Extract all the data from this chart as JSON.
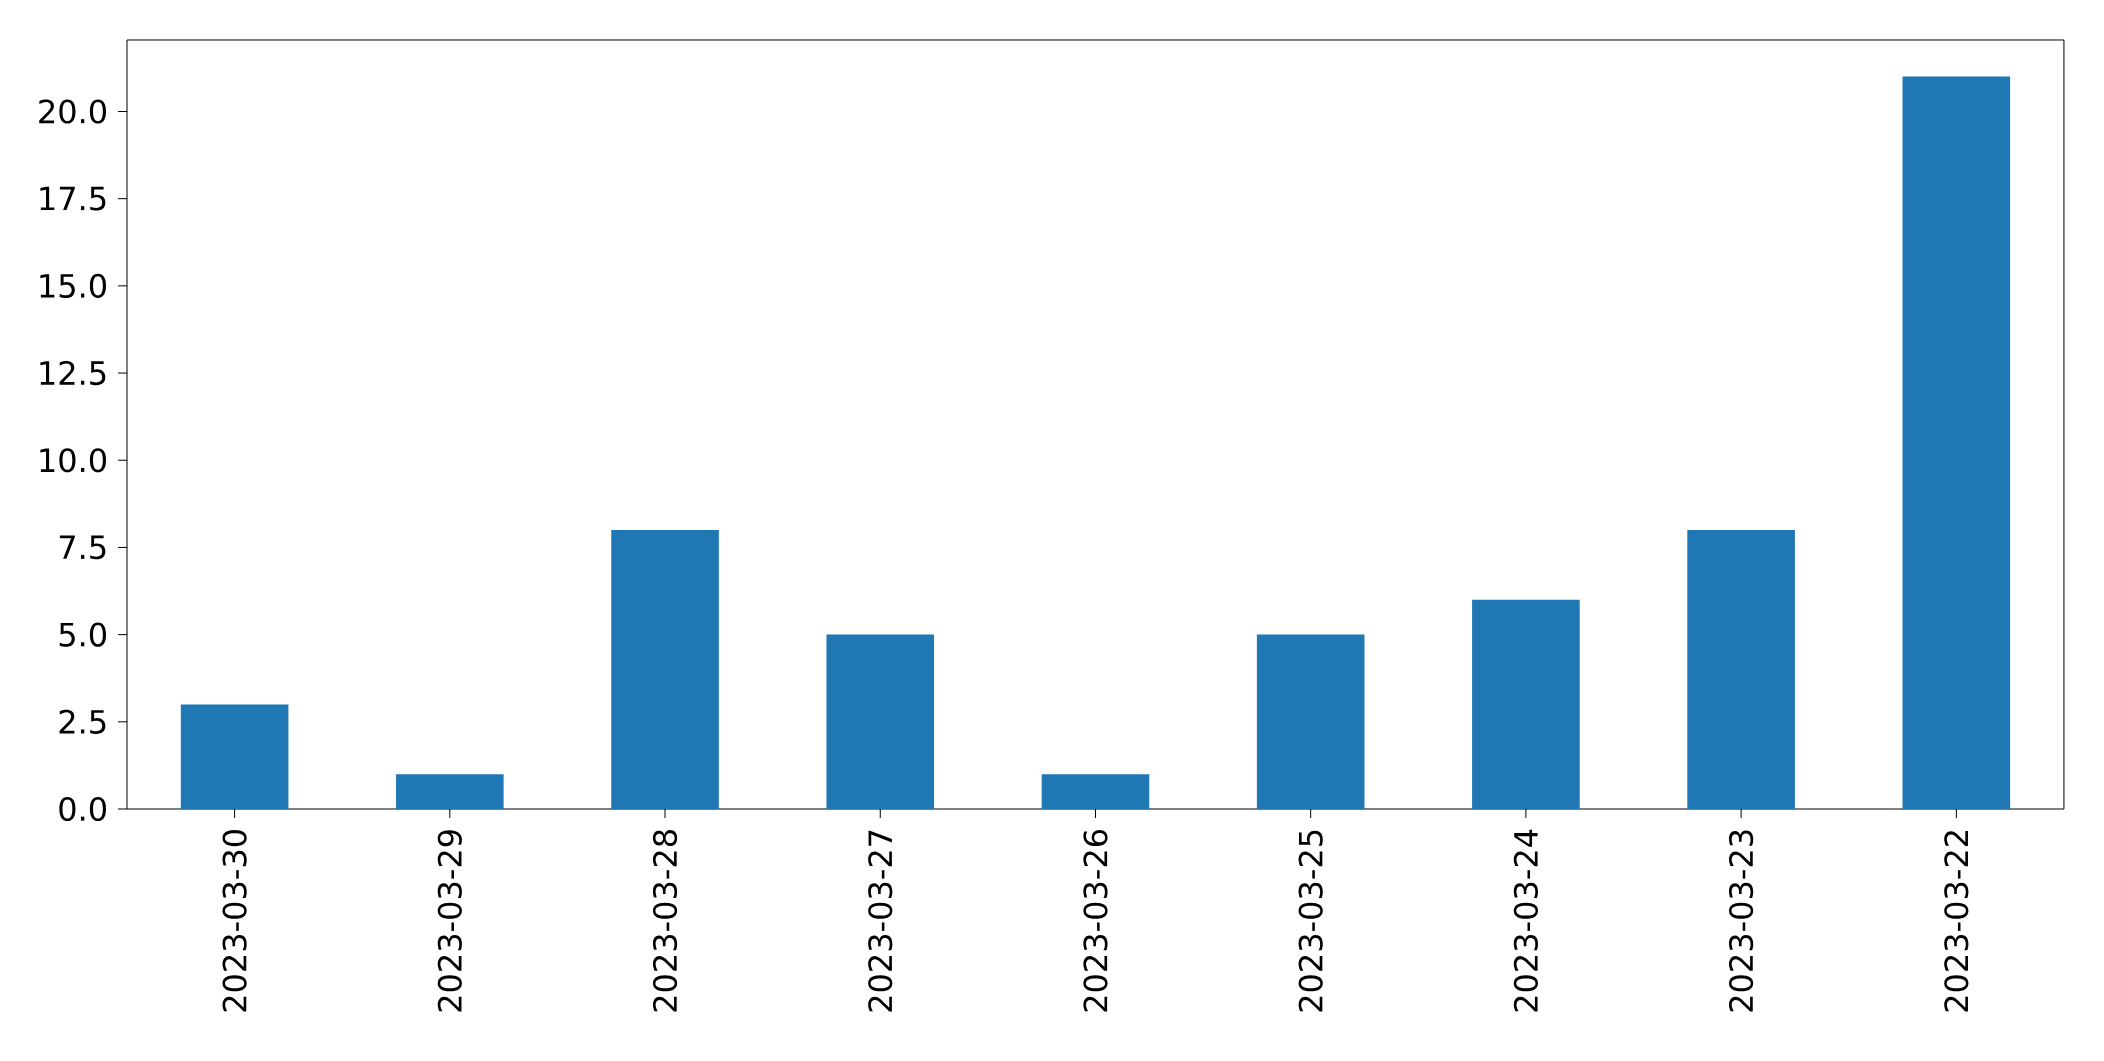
{
  "chart_data": {
    "type": "bar",
    "categories": [
      "2023-03-30",
      "2023-03-29",
      "2023-03-28",
      "2023-03-27",
      "2023-03-26",
      "2023-03-25",
      "2023-03-24",
      "2023-03-23",
      "2023-03-22"
    ],
    "values": [
      3,
      1,
      8,
      5,
      1,
      5,
      6,
      8,
      21
    ],
    "color": "#1f77b4",
    "ylim": [
      0,
      22.05
    ],
    "yticks": [
      {
        "value": 0,
        "label": "0.0"
      },
      {
        "value": 2.5,
        "label": "2.5"
      },
      {
        "value": 5,
        "label": "5.0"
      },
      {
        "value": 7.5,
        "label": "7.5"
      },
      {
        "value": 10,
        "label": "10.0"
      },
      {
        "value": 12.5,
        "label": "12.5"
      },
      {
        "value": 15,
        "label": "15.0"
      },
      {
        "value": 17.5,
        "label": "17.5"
      },
      {
        "value": 20,
        "label": "20.0"
      }
    ],
    "grid": false
  }
}
